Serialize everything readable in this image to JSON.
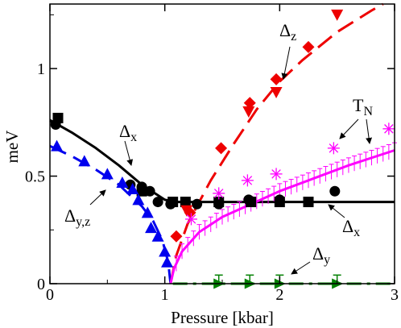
{
  "chart_data": {
    "type": "scatter",
    "xlabel": "Pressure [kbar]",
    "ylabel": "meV",
    "xlim": [
      0,
      3
    ],
    "ylim": [
      0,
      1.3
    ],
    "xticks": [
      0,
      1,
      2,
      3
    ],
    "xtick_labels": [
      "0",
      "1",
      "2",
      "3"
    ],
    "yticks": [
      0,
      0.5,
      1
    ],
    "ytick_labels": [
      "0",
      "0.5",
      "1"
    ],
    "grid": false,
    "legend": "none",
    "annotations": [
      {
        "id": "dx_top",
        "main": "Δ",
        "sub": "x",
        "color": "#000000"
      },
      {
        "id": "dyz",
        "main": "Δ",
        "sub": "y,z",
        "color": "#0000ee"
      },
      {
        "id": "dz",
        "main": "Δ",
        "sub": "z",
        "color": "#ee0000"
      },
      {
        "id": "tn",
        "main": "T",
        "sub": "N",
        "color": "#ff00ff"
      },
      {
        "id": "dx_right",
        "main": "Δ",
        "sub": "x",
        "color": "#000000"
      },
      {
        "id": "dy",
        "main": "Δ",
        "sub": "y",
        "color": "#008000"
      }
    ],
    "series": [
      {
        "id": "dx_squares",
        "marker": "square",
        "color": "#000000",
        "points": [
          [
            0.07,
            0.77
          ],
          [
            0.8,
            0.43
          ],
          [
            1.07,
            0.38
          ],
          [
            1.18,
            0.38
          ],
          [
            1.47,
            0.38
          ],
          [
            1.75,
            0.38
          ],
          [
            2.0,
            0.38
          ],
          [
            2.25,
            0.38
          ]
        ]
      },
      {
        "id": "dx_circles",
        "marker": "circle",
        "color": "#000000",
        "points": [
          [
            0.05,
            0.74
          ],
          [
            0.7,
            0.46
          ],
          [
            0.8,
            0.45
          ],
          [
            0.87,
            0.43
          ],
          [
            0.94,
            0.38
          ],
          [
            1.05,
            0.37
          ],
          [
            1.28,
            0.37
          ],
          [
            1.47,
            0.37
          ],
          [
            1.73,
            0.39
          ],
          [
            2.0,
            0.39
          ],
          [
            2.48,
            0.43
          ]
        ]
      },
      {
        "id": "dyz_triangles",
        "marker": "triangle-up",
        "color": "#0000ee",
        "points": [
          [
            0.06,
            0.64
          ],
          [
            0.3,
            0.57
          ],
          [
            0.5,
            0.51
          ],
          [
            0.63,
            0.47
          ],
          [
            0.72,
            0.44
          ],
          [
            0.77,
            0.39
          ],
          [
            0.85,
            0.33
          ],
          [
            0.88,
            0.26
          ],
          [
            0.94,
            0.22
          ],
          [
            1.0,
            0.15
          ],
          [
            1.02,
            0.1
          ]
        ]
      },
      {
        "id": "dz_diamonds",
        "marker": "diamond",
        "color": "#ee0000",
        "points": [
          [
            1.1,
            0.22
          ],
          [
            1.22,
            0.33
          ],
          [
            1.49,
            0.63
          ],
          [
            1.74,
            0.84
          ],
          [
            1.97,
            0.95
          ],
          [
            2.25,
            1.1
          ]
        ]
      },
      {
        "id": "dz_triangles_down",
        "marker": "triangle-down",
        "color": "#ee0000",
        "points": [
          [
            1.19,
            0.34
          ],
          [
            1.73,
            0.8
          ],
          [
            1.97,
            0.89
          ],
          [
            2.5,
            1.25
          ]
        ]
      },
      {
        "id": "tn_stars",
        "marker": "star",
        "color": "#ff00ff",
        "points": [
          [
            1.23,
            0.3
          ],
          [
            1.47,
            0.42
          ],
          [
            1.72,
            0.48
          ],
          [
            1.97,
            0.51
          ],
          [
            2.47,
            0.63
          ],
          [
            2.95,
            0.72
          ]
        ]
      },
      {
        "id": "dy_triangles_right",
        "marker": "triangle-right",
        "color": "#008000",
        "points": [
          [
            1.47,
            0.0
          ],
          [
            1.74,
            0.0
          ],
          [
            2.0,
            0.0
          ],
          [
            2.5,
            0.0
          ]
        ],
        "error": 0.04
      }
    ],
    "fits": [
      {
        "id": "dx_fit",
        "style": "solid",
        "color": "#000000",
        "width": 3,
        "points": [
          [
            0.0,
            0.76
          ],
          [
            0.2,
            0.7
          ],
          [
            0.4,
            0.63
          ],
          [
            0.6,
            0.55
          ],
          [
            0.8,
            0.46
          ],
          [
            1.0,
            0.39
          ],
          [
            1.1,
            0.38
          ],
          [
            3.0,
            0.38
          ]
        ]
      },
      {
        "id": "dyz_fit",
        "style": "dashed",
        "color": "#0000ee",
        "width": 3,
        "points": [
          [
            0.0,
            0.64
          ],
          [
            0.2,
            0.59
          ],
          [
            0.4,
            0.53
          ],
          [
            0.6,
            0.46
          ],
          [
            0.8,
            0.36
          ],
          [
            0.9,
            0.29
          ],
          [
            0.98,
            0.2
          ],
          [
            1.03,
            0.1
          ],
          [
            1.05,
            0.0
          ]
        ]
      },
      {
        "id": "dz_fit",
        "style": "dashed",
        "color": "#ee0000",
        "width": 3,
        "points": [
          [
            1.05,
            0.0
          ],
          [
            1.1,
            0.13
          ],
          [
            1.2,
            0.28
          ],
          [
            1.4,
            0.48
          ],
          [
            1.6,
            0.65
          ],
          [
            1.8,
            0.81
          ],
          [
            2.0,
            0.94
          ],
          [
            2.2,
            1.04
          ],
          [
            2.5,
            1.17
          ],
          [
            2.8,
            1.27
          ],
          [
            2.9,
            1.3
          ]
        ]
      },
      {
        "id": "tn_fit",
        "style": "solid",
        "color": "#ff00ff",
        "width": 3,
        "errorbars": 0.035,
        "points": [
          [
            1.05,
            0.0
          ],
          [
            1.08,
            0.07
          ],
          [
            1.15,
            0.15
          ],
          [
            1.3,
            0.24
          ],
          [
            1.5,
            0.31
          ],
          [
            1.75,
            0.37
          ],
          [
            2.0,
            0.43
          ],
          [
            2.3,
            0.49
          ],
          [
            2.6,
            0.55
          ],
          [
            3.0,
            0.62
          ]
        ]
      },
      {
        "id": "dy_fit",
        "style": "dashdot",
        "color": "#008000",
        "width": 3,
        "points": [
          [
            1.07,
            0.0
          ],
          [
            3.0,
            0.0
          ]
        ]
      }
    ]
  }
}
